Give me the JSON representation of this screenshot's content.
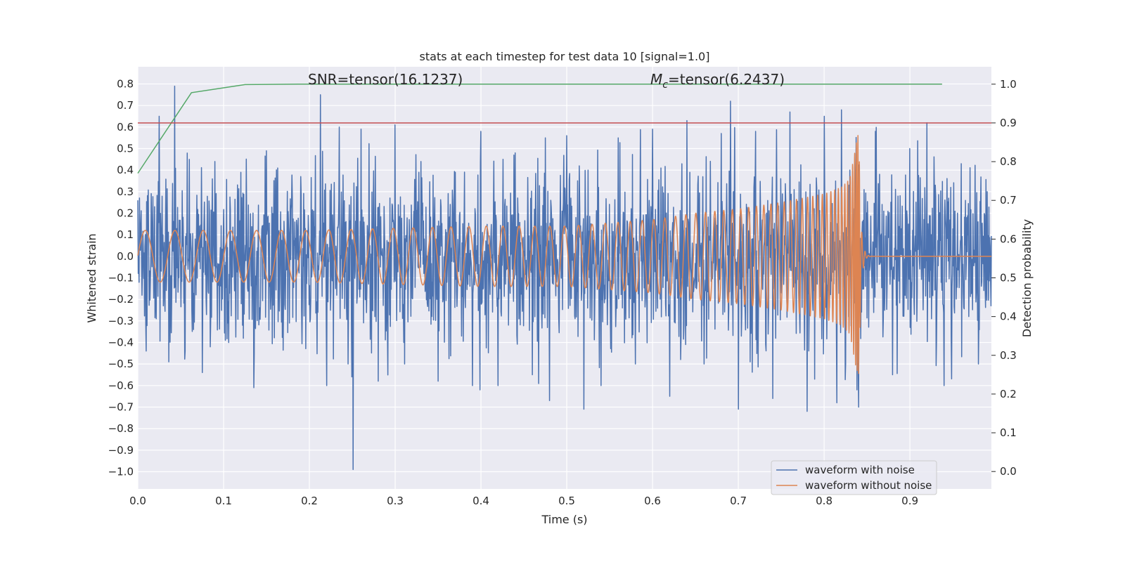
{
  "chart_data": {
    "type": "line",
    "title": "stats at each timestep for test data 10 [signal=1.0]",
    "xlabel": "Time (s)",
    "ylabel": "Whitened strain",
    "y2label": "Detection probability",
    "xlim": [
      0.0,
      0.995
    ],
    "ylim": [
      -1.08,
      0.88
    ],
    "y2lim": [
      -0.045,
      1.045
    ],
    "x_ticks": [
      0.0,
      0.1,
      0.2,
      0.3,
      0.4,
      0.5,
      0.6,
      0.7,
      0.8,
      0.9
    ],
    "x_tick_labels": [
      "0.0",
      "0.1",
      "0.2",
      "0.3",
      "0.4",
      "0.5",
      "0.6",
      "0.7",
      "0.8",
      "0.9"
    ],
    "y_ticks": [
      0.8,
      0.7,
      0.6,
      0.5,
      0.4,
      0.3,
      0.2,
      0.1,
      0.0,
      -0.1,
      -0.2,
      -0.3,
      -0.4,
      -0.5,
      -0.6,
      -0.7,
      -0.8,
      -0.9,
      -1.0
    ],
    "y_tick_labels": [
      "0.8",
      "0.7",
      "0.6",
      "0.5",
      "0.4",
      "0.3",
      "0.2",
      "0.1",
      "0.0",
      "−0.1",
      "−0.2",
      "−0.3",
      "−0.4",
      "−0.5",
      "−0.6",
      "−0.7",
      "−0.8",
      "−0.9",
      "−1.0"
    ],
    "y2_ticks": [
      1.0,
      0.9,
      0.8,
      0.7,
      0.6,
      0.5,
      0.4,
      0.3,
      0.2,
      0.1,
      0.0
    ],
    "y2_tick_labels": [
      "1.0",
      "0.9",
      "0.8",
      "0.7",
      "0.6",
      "0.5",
      "0.4",
      "0.3",
      "0.2",
      "0.1",
      "0.0"
    ],
    "grid": true,
    "legend_placement": "lower-right",
    "annotations": {
      "snr": "SNR=tensor(16.1237)",
      "mc_symbol": "M",
      "mc_subscript": "c",
      "mc_value": "=tensor(6.2437)"
    },
    "series": [
      {
        "name": "waveform with noise",
        "color": "#4c72b0",
        "axis": "left",
        "note_on_data": "dense random noise sampled at ~2048 Hz; representative extrema listed",
        "x": [
          0.0,
          0.01,
          0.025,
          0.03,
          0.036,
          0.043,
          0.048,
          0.055,
          0.06,
          0.075,
          0.09,
          0.102,
          0.12,
          0.135,
          0.15,
          0.17,
          0.19,
          0.205,
          0.213,
          0.22,
          0.235,
          0.245,
          0.251,
          0.26,
          0.28,
          0.3,
          0.31,
          0.33,
          0.35,
          0.37,
          0.39,
          0.4,
          0.42,
          0.44,
          0.46,
          0.475,
          0.48,
          0.5,
          0.52,
          0.525,
          0.54,
          0.56,
          0.58,
          0.6,
          0.62,
          0.64,
          0.66,
          0.68,
          0.691,
          0.7,
          0.72,
          0.74,
          0.76,
          0.78,
          0.8,
          0.815,
          0.82,
          0.83,
          0.84,
          0.86,
          0.88,
          0.9,
          0.92,
          0.94,
          0.96,
          0.98,
          0.99
        ],
        "values": [
          0.26,
          -0.44,
          0.65,
          -0.23,
          -0.49,
          0.79,
          -0.1,
          -0.44,
          0.45,
          -0.54,
          0.44,
          -0.39,
          0.39,
          -0.61,
          0.49,
          -0.2,
          0.37,
          0.21,
          0.75,
          -0.6,
          0.6,
          -0.5,
          -0.99,
          0.59,
          -0.58,
          0.61,
          -0.4,
          0.44,
          -0.58,
          0.39,
          -0.6,
          0.58,
          -0.6,
          0.48,
          -0.55,
          0.55,
          -0.67,
          0.56,
          -0.71,
          0.4,
          -0.6,
          0.55,
          -0.5,
          0.59,
          -0.65,
          0.63,
          -0.5,
          0.57,
          0.72,
          -0.71,
          0.58,
          -0.66,
          0.67,
          -0.72,
          0.65,
          -0.68,
          0.68,
          0.4,
          -0.7,
          0.58,
          -0.55,
          0.5,
          0.62,
          -0.6,
          0.43,
          -0.5,
          0.3
        ]
      },
      {
        "name": "waveform without noise",
        "color": "#dd8452",
        "axis": "left",
        "note_on_data": "chirp; envelope amplitude vs time, oscillation frequency increases toward merger near t=0.84 s",
        "x": [
          0.0,
          0.2,
          0.4,
          0.5,
          0.6,
          0.65,
          0.7,
          0.75,
          0.8,
          0.82,
          0.83,
          0.835,
          0.84,
          0.843,
          0.85,
          0.86,
          0.995
        ],
        "values": [
          0.12,
          0.12,
          0.14,
          0.14,
          0.17,
          0.2,
          0.22,
          0.25,
          0.29,
          0.32,
          0.36,
          0.47,
          0.58,
          0.2,
          0.05,
          0.01,
          0.0
        ]
      },
      {
        "color": "#55a868",
        "axis": "right",
        "x": [
          0.0,
          0.0625,
          0.125,
          0.1875,
          0.25,
          0.3125,
          0.375,
          0.4375,
          0.5,
          0.5625,
          0.625,
          0.6875,
          0.75,
          0.8125,
          0.875,
          0.9375
        ],
        "values": [
          0.77,
          0.978,
          0.999,
          1.0,
          1.0,
          1.0,
          1.0,
          1.0,
          1.0,
          1.0,
          1.0,
          1.0,
          1.0,
          1.0,
          1.0,
          1.0
        ]
      },
      {
        "color": "#c44e52",
        "axis": "right",
        "x": [
          0.0,
          0.995
        ],
        "values": [
          0.9,
          0.9
        ]
      }
    ]
  }
}
